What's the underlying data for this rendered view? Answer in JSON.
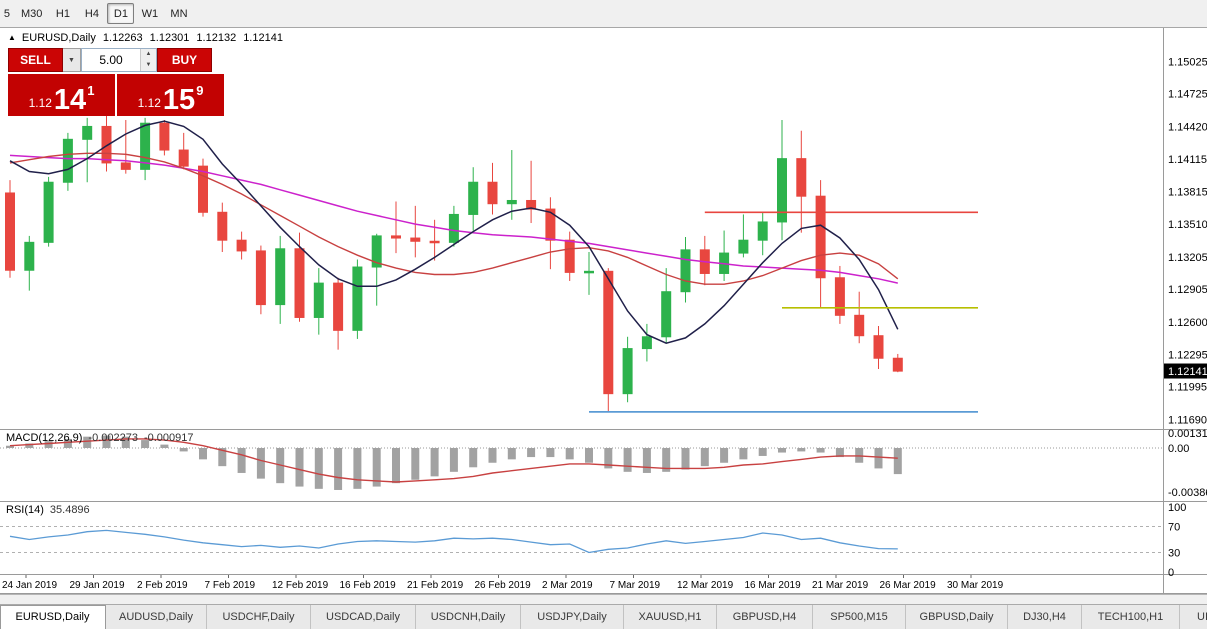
{
  "toolbar": {
    "timeframes": [
      {
        "label": "5",
        "active": false,
        "cropped": true
      },
      {
        "label": "M30",
        "active": false
      },
      {
        "label": "H1",
        "active": false
      },
      {
        "label": "H4",
        "active": false
      },
      {
        "label": "D1",
        "active": true
      },
      {
        "label": "W1",
        "active": false
      },
      {
        "label": "MN",
        "active": false
      }
    ]
  },
  "chart": {
    "header": {
      "symbol": "EURUSD,Daily",
      "open": "1.12263",
      "high": "1.12301",
      "low": "1.12132",
      "close": "1.12141"
    }
  },
  "trade_panel": {
    "sell_label": "SELL",
    "buy_label": "BUY",
    "volume": "5.00",
    "sell_price": {
      "prefix": "1.12",
      "pips": "14",
      "pipette": "1"
    },
    "buy_price": {
      "prefix": "1.12",
      "pips": "15",
      "pipette": "9"
    }
  },
  "chart_data": {
    "type": "candlestick",
    "symbol": "EURUSD",
    "timeframe": "Daily",
    "current_price": "1.12141",
    "axis_range": {
      "top": 1.153,
      "bottom": 1.1161
    },
    "y_axis_labels": [
      "1.15025",
      "1.14725",
      "1.14420",
      "1.14115",
      "1.13815",
      "1.13510",
      "1.13205",
      "1.12905",
      "1.12600",
      "1.12295",
      "1.11995",
      "1.11690"
    ],
    "x_axis_labels": [
      "24 Jan 2019",
      "29 Jan 2019",
      "2 Feb 2019",
      "7 Feb 2019",
      "12 Feb 2019",
      "16 Feb 2019",
      "21 Feb 2019",
      "26 Feb 2019",
      "2 Mar 2019",
      "7 Mar 2019",
      "12 Mar 2019",
      "16 Mar 2019",
      "21 Mar 2019",
      "26 Mar 2019",
      "30 Mar 2019"
    ],
    "ohlc": [
      [
        1.138,
        1.1392,
        1.1301,
        1.1308
      ],
      [
        1.1308,
        1.134,
        1.1289,
        1.1334
      ],
      [
        1.1334,
        1.1395,
        1.133,
        1.139
      ],
      [
        1.139,
        1.1436,
        1.1382,
        1.143
      ],
      [
        1.143,
        1.145,
        1.139,
        1.1442
      ],
      [
        1.1442,
        1.1452,
        1.14,
        1.1408
      ],
      [
        1.1408,
        1.1448,
        1.1398,
        1.1402
      ],
      [
        1.1402,
        1.145,
        1.1392,
        1.1445
      ],
      [
        1.1445,
        1.1448,
        1.1415,
        1.142
      ],
      [
        1.142,
        1.1436,
        1.1402,
        1.1405
      ],
      [
        1.1405,
        1.1412,
        1.1358,
        1.1362
      ],
      [
        1.1362,
        1.1371,
        1.1325,
        1.1336
      ],
      [
        1.1336,
        1.1344,
        1.1318,
        1.1326
      ],
      [
        1.1326,
        1.1331,
        1.1267,
        1.1276
      ],
      [
        1.1276,
        1.134,
        1.1258,
        1.1328
      ],
      [
        1.1328,
        1.1343,
        1.126,
        1.1264
      ],
      [
        1.1264,
        1.131,
        1.1248,
        1.1296
      ],
      [
        1.1296,
        1.1301,
        1.1234,
        1.1252
      ],
      [
        1.1252,
        1.1318,
        1.1244,
        1.1311
      ],
      [
        1.1311,
        1.1342,
        1.1275,
        1.134
      ],
      [
        1.134,
        1.1372,
        1.1324,
        1.1338
      ],
      [
        1.1338,
        1.1368,
        1.132,
        1.1335
      ],
      [
        1.1335,
        1.1355,
        1.1317,
        1.1334
      ],
      [
        1.1334,
        1.1368,
        1.133,
        1.136
      ],
      [
        1.136,
        1.1404,
        1.1345,
        1.139
      ],
      [
        1.139,
        1.1408,
        1.136,
        1.137
      ],
      [
        1.137,
        1.142,
        1.1355,
        1.1373
      ],
      [
        1.1373,
        1.141,
        1.1352,
        1.1365
      ],
      [
        1.1365,
        1.1376,
        1.1309,
        1.1336
      ],
      [
        1.1336,
        1.1344,
        1.1298,
        1.1306
      ],
      [
        1.1306,
        1.1325,
        1.1285,
        1.1307
      ],
      [
        1.1307,
        1.131,
        1.1176,
        1.1193
      ],
      [
        1.1193,
        1.1246,
        1.1185,
        1.1235
      ],
      [
        1.1235,
        1.1258,
        1.1223,
        1.1246
      ],
      [
        1.1246,
        1.131,
        1.124,
        1.1288
      ],
      [
        1.1288,
        1.1339,
        1.1278,
        1.1327
      ],
      [
        1.1327,
        1.134,
        1.1294,
        1.1305
      ],
      [
        1.1305,
        1.1345,
        1.1298,
        1.1324
      ],
      [
        1.1324,
        1.136,
        1.132,
        1.1336
      ],
      [
        1.1336,
        1.1362,
        1.1322,
        1.1353
      ],
      [
        1.1353,
        1.1448,
        1.1336,
        1.1412
      ],
      [
        1.1412,
        1.1438,
        1.1343,
        1.1377
      ],
      [
        1.1377,
        1.1392,
        1.1273,
        1.1301
      ],
      [
        1.1301,
        1.1312,
        1.1258,
        1.1266
      ],
      [
        1.1266,
        1.1288,
        1.124,
        1.1247
      ],
      [
        1.1247,
        1.1256,
        1.1216,
        1.1226
      ],
      [
        1.1226,
        1.123,
        1.1213,
        1.1214
      ]
    ],
    "overlays": {
      "ma_fast": {
        "name": "ma-fast-navy",
        "values": [
          1.141,
          1.14,
          1.1398,
          1.1402,
          1.1412,
          1.1424,
          1.1435,
          1.1443,
          1.1447,
          1.1442,
          1.143,
          1.1407,
          1.1388,
          1.1368,
          1.1348,
          1.133,
          1.1313,
          1.13,
          1.1293,
          1.1293,
          1.1299,
          1.1309,
          1.132,
          1.1332,
          1.1344,
          1.1355,
          1.1363,
          1.1366,
          1.1362,
          1.135,
          1.133,
          1.13,
          1.127,
          1.1248,
          1.124,
          1.1245,
          1.1258,
          1.1275,
          1.1295,
          1.1315,
          1.1333,
          1.1347,
          1.135,
          1.1338,
          1.1318,
          1.129,
          1.1253
        ]
      },
      "ma_mid": {
        "name": "ma-mid-red",
        "values": [
          1.1408,
          1.1411,
          1.1414,
          1.1416,
          1.1417,
          1.1417,
          1.1416,
          1.1413,
          1.1409,
          1.1403,
          1.1396,
          1.1388,
          1.1379,
          1.1369,
          1.1359,
          1.1349,
          1.1339,
          1.133,
          1.1322,
          1.1315,
          1.131,
          1.1306,
          1.1304,
          1.1304,
          1.1306,
          1.131,
          1.1315,
          1.132,
          1.1325,
          1.1328,
          1.1329,
          1.1326,
          1.132,
          1.1312,
          1.1304,
          1.1298,
          1.1295,
          1.1295,
          1.1298,
          1.1303,
          1.131,
          1.1317,
          1.1322,
          1.1324,
          1.1322,
          1.1314,
          1.13
        ]
      },
      "ma_slow": {
        "name": "ma-slow-magenta",
        "values": [
          1.1415,
          1.1414,
          1.1413,
          1.1412,
          1.1412,
          1.1411,
          1.141,
          1.1408,
          1.1406,
          1.1403,
          1.14,
          1.1396,
          1.1392,
          1.1388,
          1.1383,
          1.1378,
          1.1373,
          1.1368,
          1.1363,
          1.1359,
          1.1355,
          1.1351,
          1.1348,
          1.1345,
          1.1343,
          1.1341,
          1.134,
          1.1339,
          1.1337,
          1.1335,
          1.1333,
          1.133,
          1.1327,
          1.1324,
          1.1321,
          1.1318,
          1.1316,
          1.1314,
          1.1312,
          1.1311,
          1.131,
          1.1309,
          1.1308,
          1.1306,
          1.1303,
          1.13,
          1.1296
        ]
      }
    },
    "hlines": [
      {
        "name": "resistance-line-red",
        "price": 1.1362,
        "start_index": 36,
        "color": "#e8463f"
      },
      {
        "name": "support-line-yellow",
        "price": 1.1273,
        "start_index": 40,
        "color": "#b7bf00"
      },
      {
        "name": "support-line-blue",
        "price": 1.1176,
        "start_index": 30,
        "color": "#5b9bd5"
      }
    ],
    "macd": {
      "name": "MACD(12,26,9)",
      "main_value": "-0.002273",
      "signal_value": "-0.000917",
      "axis_labels": [
        "0.001313",
        "0.00",
        "-0.003862"
      ],
      "axis_values": [
        0.001313,
        0,
        -0.003862
      ],
      "range": {
        "top": 0.0015,
        "bottom": -0.00432
      },
      "histogram": [
        0.0002,
        0.0004,
        0.0006,
        0.0008,
        0.001,
        0.0011,
        0.001,
        0.0007,
        0.0003,
        -0.0003,
        -0.001,
        -0.0016,
        -0.0022,
        -0.0027,
        -0.0031,
        -0.0034,
        -0.0036,
        -0.0037,
        -0.0036,
        -0.0034,
        -0.0031,
        -0.0028,
        -0.0025,
        -0.0021,
        -0.0017,
        -0.0013,
        -0.001,
        -0.0008,
        -0.0008,
        -0.001,
        -0.0013,
        -0.0018,
        -0.0021,
        -0.0022,
        -0.0021,
        -0.0019,
        -0.0016,
        -0.0013,
        -0.001,
        -0.0007,
        -0.0004,
        -0.0003,
        -0.0004,
        -0.0008,
        -0.0013,
        -0.0018,
        -0.0023
      ],
      "signal": [
        0.0002,
        0.0003,
        0.0004,
        0.0005,
        0.0006,
        0.0007,
        0.0008,
        0.0008,
        0.0007,
        0.0005,
        0.0002,
        -0.0002,
        -0.0006,
        -0.0011,
        -0.0015,
        -0.0019,
        -0.0023,
        -0.0026,
        -0.0028,
        -0.0029,
        -0.003,
        -0.0029,
        -0.0028,
        -0.0027,
        -0.0025,
        -0.0022,
        -0.002,
        -0.0018,
        -0.0016,
        -0.0014,
        -0.0014,
        -0.0015,
        -0.0016,
        -0.0017,
        -0.0018,
        -0.0018,
        -0.0018,
        -0.0017,
        -0.0015,
        -0.0014,
        -0.0012,
        -0.001,
        -0.0008,
        -0.0007,
        -0.0007,
        -0.0008,
        -0.0009
      ]
    },
    "rsi": {
      "name": "RSI(14)",
      "value": "35.4896",
      "axis_labels": [
        "100",
        "70",
        "30",
        "0"
      ],
      "axis_values": [
        100,
        70,
        30,
        0
      ],
      "levels": [
        70,
        30
      ],
      "values": [
        55,
        50,
        54,
        57,
        62,
        64,
        61,
        58,
        54,
        49,
        45,
        42,
        39,
        41,
        38,
        40,
        37,
        43,
        47,
        48,
        47,
        46,
        48,
        52,
        51,
        52,
        50,
        46,
        42,
        43,
        30,
        35,
        37,
        43,
        48,
        44,
        47,
        50,
        53,
        60,
        57,
        50,
        52,
        45,
        40,
        36,
        35.5
      ]
    },
    "colors": {
      "bull": "#2db24c",
      "bear": "#e8463f",
      "ma_fast": "#20204a",
      "ma_mid": "#c84141",
      "ma_slow": "#cc22cc",
      "macd_hist": "#a2a2a2",
      "macd_signal": "#c84141",
      "rsi": "#5b9bd5",
      "badge_bg": "#000000",
      "badge_text": "#ffffff"
    }
  },
  "bottom_tabs": [
    {
      "label": "EURUSD,Daily",
      "active": true
    },
    {
      "label": "AUDUSD,Daily",
      "active": false
    },
    {
      "label": "USDCHF,Daily",
      "active": false
    },
    {
      "label": "USDCAD,Daily",
      "active": false
    },
    {
      "label": "USDCNH,Daily",
      "active": false
    },
    {
      "label": "USDJPY,Daily",
      "active": false
    },
    {
      "label": "XAUUSD,H1",
      "active": false
    },
    {
      "label": "GBPUSD,H4",
      "active": false
    },
    {
      "label": "SP500,M15",
      "active": false
    },
    {
      "label": "GBPUSD,Daily",
      "active": false
    },
    {
      "label": "DJ30,H4",
      "active": false
    },
    {
      "label": "TECH100,H1",
      "active": false
    },
    {
      "label": "UI",
      "active": false
    }
  ]
}
